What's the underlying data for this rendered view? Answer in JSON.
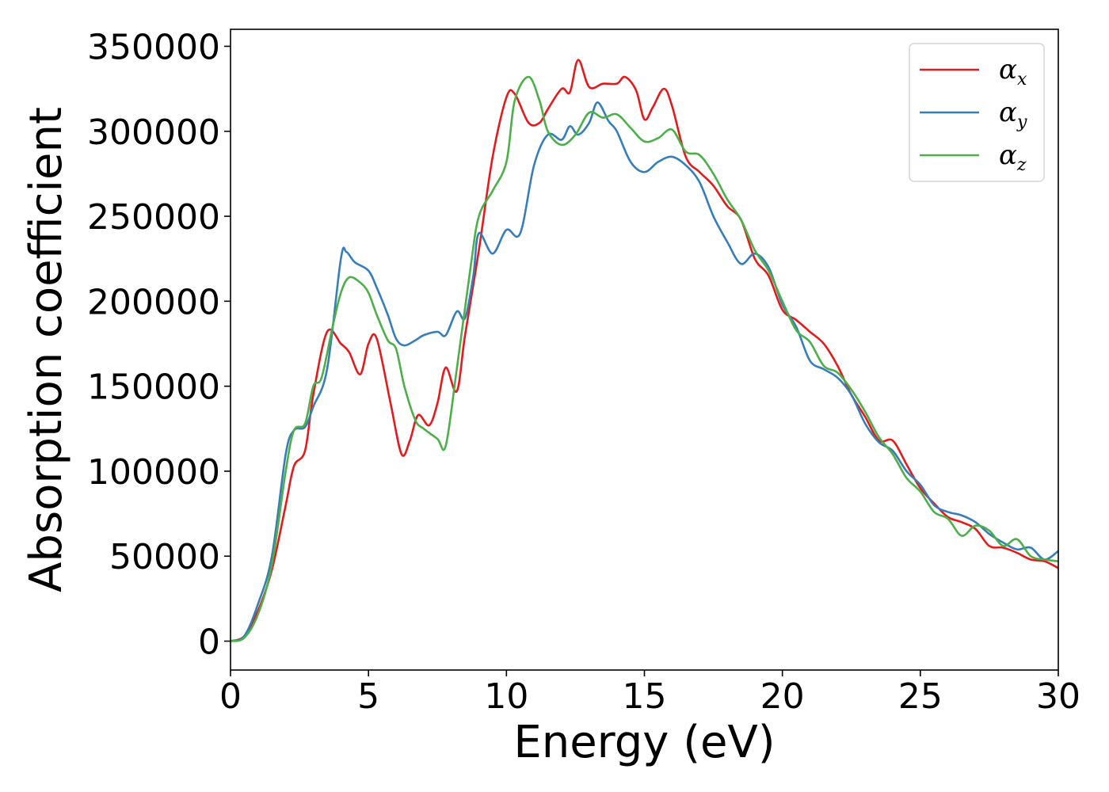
{
  "chart_data": {
    "type": "line",
    "xlabel": "Energy (eV)",
    "ylabel": "Absorption coefficient",
    "xlim": [
      0,
      30
    ],
    "ylim": [
      -17000,
      360000
    ],
    "xticks": [
      0,
      5,
      10,
      15,
      20,
      25,
      30
    ],
    "yticks": [
      0,
      50000,
      100000,
      150000,
      200000,
      250000,
      300000,
      350000
    ],
    "grid": false,
    "legend_position": "top-right",
    "series": [
      {
        "name": "α_x",
        "label_main": "α",
        "label_sub": "x",
        "color": "#e41a1c",
        "x": [
          0,
          0.5,
          1.0,
          1.5,
          2.0,
          2.3,
          2.7,
          3.0,
          3.5,
          4.0,
          4.3,
          4.7,
          5.0,
          5.3,
          5.8,
          6.2,
          6.5,
          6.8,
          7.2,
          7.5,
          7.8,
          8.2,
          8.5,
          9.0,
          9.5,
          10.0,
          10.3,
          10.8,
          11.2,
          11.5,
          12.0,
          12.3,
          12.6,
          13.0,
          13.5,
          14.0,
          14.3,
          14.7,
          15.0,
          15.3,
          15.7,
          16.0,
          16.5,
          17.0,
          17.5,
          18.0,
          18.5,
          19.0,
          19.5,
          20.0,
          20.5,
          21.0,
          21.5,
          22.0,
          22.5,
          23.0,
          23.5,
          24.0,
          24.5,
          25.0,
          25.5,
          26.0,
          26.5,
          27.0,
          27.5,
          28.0,
          28.5,
          29.0,
          29.5,
          30.0
        ],
        "y": [
          0,
          3000,
          18000,
          42000,
          80000,
          103000,
          112000,
          145000,
          182000,
          175000,
          170000,
          157000,
          175000,
          178000,
          140000,
          110000,
          118000,
          133000,
          127000,
          140000,
          161000,
          147000,
          180000,
          230000,
          285000,
          320000,
          322000,
          305000,
          305000,
          313000,
          325000,
          323000,
          342000,
          326000,
          328000,
          328000,
          332000,
          324000,
          307000,
          314000,
          325000,
          315000,
          285000,
          276000,
          268000,
          256000,
          248000,
          225000,
          215000,
          195000,
          189000,
          182000,
          175000,
          162000,
          145000,
          132000,
          118000,
          118000,
          104000,
          90000,
          81000,
          73000,
          70000,
          66000,
          56000,
          55000,
          52000,
          48000,
          47000,
          43000
        ]
      },
      {
        "name": "α_y",
        "label_main": "α",
        "label_sub": "y",
        "color": "#377eb8",
        "x": [
          0,
          0.5,
          1.0,
          1.5,
          2.0,
          2.3,
          2.7,
          3.0,
          3.5,
          4.0,
          4.2,
          4.5,
          5.0,
          5.3,
          5.7,
          6.0,
          6.3,
          6.7,
          7.0,
          7.5,
          7.8,
          8.2,
          8.5,
          8.8,
          9.0,
          9.5,
          10.0,
          10.5,
          11.0,
          11.5,
          12.0,
          12.3,
          12.6,
          13.0,
          13.3,
          13.7,
          14.0,
          14.5,
          15.0,
          15.5,
          16.0,
          16.5,
          17.0,
          17.5,
          18.0,
          18.5,
          19.0,
          19.5,
          20.0,
          20.5,
          21.0,
          21.5,
          22.0,
          22.5,
          23.0,
          23.5,
          24.0,
          24.5,
          25.0,
          25.5,
          26.0,
          26.5,
          27.0,
          27.5,
          28.0,
          28.5,
          29.0,
          29.5,
          30.0
        ],
        "y": [
          0,
          3000,
          22000,
          50000,
          110000,
          124000,
          126000,
          138000,
          160000,
          225000,
          229000,
          223000,
          218000,
          208000,
          192000,
          178000,
          174000,
          177000,
          180000,
          182000,
          180000,
          194000,
          190000,
          215000,
          240000,
          228000,
          242000,
          240000,
          280000,
          298000,
          295000,
          303000,
          298000,
          305000,
          317000,
          306000,
          300000,
          282000,
          276000,
          282000,
          285000,
          280000,
          270000,
          250000,
          235000,
          222000,
          228000,
          220000,
          198000,
          185000,
          165000,
          160000,
          155000,
          145000,
          128000,
          117000,
          112000,
          100000,
          92000,
          80000,
          76000,
          74000,
          70000,
          63000,
          58000,
          54000,
          55000,
          48000,
          53000
        ]
      },
      {
        "name": "α_z",
        "label_main": "α",
        "label_sub": "z",
        "color": "#4daf4a",
        "x": [
          0,
          0.5,
          1.0,
          1.5,
          2.0,
          2.3,
          2.7,
          3.0,
          3.3,
          3.7,
          4.0,
          4.3,
          4.7,
          5.0,
          5.3,
          5.7,
          6.0,
          6.3,
          6.7,
          7.0,
          7.5,
          7.8,
          8.2,
          8.7,
          9.0,
          9.5,
          10.0,
          10.3,
          10.8,
          11.2,
          11.5,
          12.0,
          12.5,
          13.0,
          13.5,
          14.0,
          14.5,
          15.0,
          15.5,
          16.0,
          16.5,
          17.0,
          17.5,
          18.0,
          18.5,
          19.0,
          19.5,
          20.0,
          20.5,
          21.0,
          21.5,
          22.0,
          22.5,
          23.0,
          23.5,
          24.0,
          24.5,
          25.0,
          25.5,
          26.0,
          26.5,
          27.0,
          27.5,
          28.0,
          28.5,
          29.0,
          29.5,
          30.0
        ],
        "y": [
          0,
          2000,
          16000,
          45000,
          100000,
          124000,
          128000,
          150000,
          155000,
          185000,
          205000,
          214000,
          211000,
          205000,
          192000,
          177000,
          172000,
          150000,
          130000,
          125000,
          119000,
          115000,
          160000,
          220000,
          250000,
          265000,
          282000,
          318000,
          332000,
          318000,
          300000,
          292000,
          298000,
          311000,
          308000,
          310000,
          302000,
          294000,
          296000,
          301000,
          288000,
          286000,
          275000,
          260000,
          248000,
          230000,
          218000,
          200000,
          183000,
          176000,
          162000,
          158000,
          148000,
          135000,
          120000,
          110000,
          96000,
          88000,
          76000,
          72000,
          62000,
          68000,
          65000,
          56000,
          60000,
          50000,
          48000,
          47000
        ]
      }
    ]
  }
}
